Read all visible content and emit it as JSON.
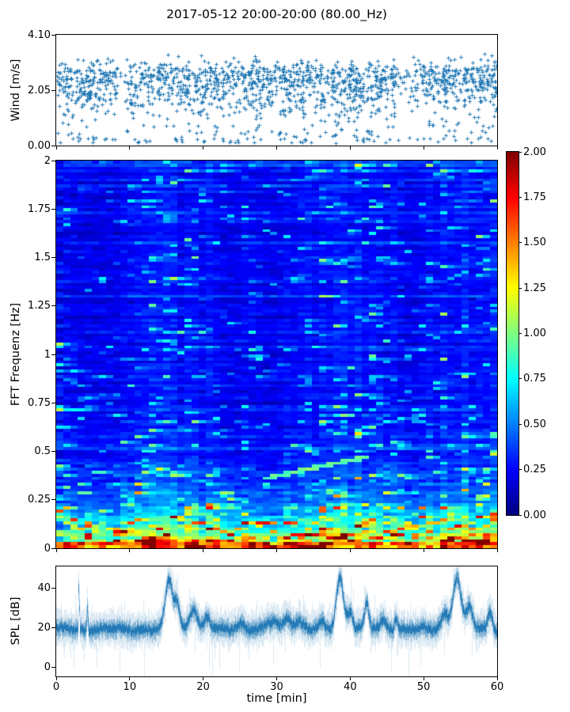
{
  "figure": {
    "title": "2017-05-12 20:00-20:00 (80.00_Hz)",
    "background": "#ffffff",
    "accent_color": "#1f77b4"
  },
  "chart_data": [
    {
      "type": "scatter",
      "name": "wind-speed",
      "ylabel": "Wind [m/s]",
      "yticks": [
        0.0,
        2.05,
        4.1
      ],
      "ytick_labels": [
        "0.00",
        "2.05",
        "4.10"
      ],
      "ylim": [
        0,
        4.1
      ],
      "xlim": [
        0,
        60
      ],
      "xticks": [
        0,
        10,
        20,
        30,
        40,
        50,
        60
      ],
      "marker": "+",
      "marker_color": "#1f77b4",
      "n_points": 1650,
      "y_cluster_mean": 2.55,
      "y_cluster_sd": 0.55,
      "y_secondary_mean": 1.7,
      "y_secondary_sd": 0.55,
      "low_tail_fraction": 0.1,
      "sparse_windows_min": [
        [
          8.2,
          9.4
        ],
        [
          46.3,
          48.6
        ]
      ],
      "description": "Dense cloud of wind-speed plus-markers between ~1 and ~3.6 m/s with sparse low-speed outliers down to ~0.1 m/s"
    },
    {
      "type": "heatmap",
      "name": "fft-spectrogram",
      "ylabel": "FFT Frequenz [Hz]",
      "yticks": [
        0,
        0.25,
        0.5,
        0.75,
        1,
        1.25,
        1.5,
        1.75,
        2
      ],
      "ytick_labels": [
        "0",
        "0.25",
        "0.5",
        "0.75",
        "1",
        "1.25",
        "1.5",
        "1.75",
        "2"
      ],
      "ylim": [
        0,
        2
      ],
      "xlim": [
        0,
        60
      ],
      "xticks": [
        0,
        10,
        20,
        30,
        40,
        50,
        60
      ],
      "colormap": "jet",
      "zlim": [
        0,
        2
      ],
      "colorbar_ticks": [
        0,
        0.25,
        0.5,
        0.75,
        1,
        1.25,
        1.5,
        1.75,
        2
      ],
      "colorbar_tick_labels": [
        "0.00",
        "0.25",
        "0.50",
        "0.75",
        "1.00",
        "1.25",
        "1.50",
        "1.75",
        "2.00"
      ],
      "n_cols": 62,
      "n_rows": 130,
      "base_level": 0.2,
      "lowfreq_scale": 0.85,
      "lowfreq_decay_hz": 0.16,
      "bottom_band_min": 1.1,
      "events": [
        {
          "t": 0.6,
          "s": 0.8,
          "w": 0.7
        },
        {
          "t": 9.5,
          "s": 0.4,
          "w": 0.8
        },
        {
          "t": 11.5,
          "s": 0.6,
          "w": 0.9
        },
        {
          "t": 13.5,
          "s": 0.9,
          "w": 0.9
        },
        {
          "t": 15.5,
          "s": 1.0,
          "w": 0.9
        },
        {
          "t": 18.3,
          "s": 0.85,
          "w": 0.8
        },
        {
          "t": 21.0,
          "s": 0.7,
          "w": 0.7
        },
        {
          "t": 26.0,
          "s": 0.25,
          "w": 0.8
        },
        {
          "t": 31.5,
          "s": 0.45,
          "w": 0.9
        },
        {
          "t": 34.0,
          "s": 0.7,
          "w": 0.9
        },
        {
          "t": 36.5,
          "s": 0.7,
          "w": 0.8
        },
        {
          "t": 38.7,
          "s": 1.0,
          "w": 0.9
        },
        {
          "t": 41.0,
          "s": 0.85,
          "w": 0.8
        },
        {
          "t": 43.5,
          "s": 0.8,
          "w": 0.8
        },
        {
          "t": 46.0,
          "s": 0.6,
          "w": 0.7
        },
        {
          "t": 50.5,
          "s": 0.6,
          "w": 0.8
        },
        {
          "t": 53.0,
          "s": 0.8,
          "w": 0.8
        },
        {
          "t": 55.5,
          "s": 0.9,
          "w": 0.9
        },
        {
          "t": 58.0,
          "s": 0.75,
          "w": 0.7
        },
        {
          "t": 59.7,
          "s": 0.9,
          "w": 0.6
        }
      ],
      "diagonal_feature": {
        "t_start": 28,
        "t_end": 43,
        "f_start": 0.35,
        "f_end": 0.47,
        "value": 0.85
      },
      "description": "Mostly dark/medium blue field (values 0.1-0.5) with horizontal noisy striping, cyan-green streaks, strong yellow-orange-red activity below ~0.3 Hz concentrated in vertical event bands around 10-22, 32-46 and 50-60 min; bottom rows saturate to dark red"
    },
    {
      "type": "line",
      "name": "spl",
      "ylabel": "SPL [dB]",
      "xlabel": "time [min]",
      "yticks": [
        0,
        20,
        40
      ],
      "ytick_labels": [
        "0",
        "20",
        "40"
      ],
      "xticks": [
        0,
        10,
        20,
        30,
        40,
        50,
        60
      ],
      "xtick_labels": [
        "0",
        "10",
        "20",
        "30",
        "40",
        "50",
        "60"
      ],
      "ylim": [
        -4.8,
        50.8
      ],
      "xlim": [
        0,
        60
      ],
      "line_color": "#1f77b4",
      "baseline_db": 19,
      "noise_halfwidth_db": 5,
      "peaks": [
        {
          "t": 3.05,
          "h": 24,
          "w": 0.08
        },
        {
          "t": 4.2,
          "h": 12,
          "w": 0.1
        },
        {
          "t": 15.3,
          "h": 25,
          "w": 0.7
        },
        {
          "t": 16.4,
          "h": 12,
          "w": 0.5
        },
        {
          "t": 18.6,
          "h": 11,
          "w": 0.7
        },
        {
          "t": 20.5,
          "h": 6,
          "w": 0.5
        },
        {
          "t": 25.0,
          "h": 3,
          "w": 0.8
        },
        {
          "t": 29.5,
          "h": 4,
          "w": 1.0
        },
        {
          "t": 31.5,
          "h": 6,
          "w": 0.7
        },
        {
          "t": 33.0,
          "h": 4,
          "w": 0.7
        },
        {
          "t": 36.0,
          "h": 3,
          "w": 0.5
        },
        {
          "t": 38.55,
          "h": 26,
          "w": 0.7
        },
        {
          "t": 40.0,
          "h": 9,
          "w": 0.5
        },
        {
          "t": 42.2,
          "h": 13,
          "w": 0.4
        },
        {
          "t": 44.5,
          "h": 4,
          "w": 0.6
        },
        {
          "t": 46.2,
          "h": 6,
          "w": 0.35
        },
        {
          "t": 52.8,
          "h": 8,
          "w": 0.6
        },
        {
          "t": 54.45,
          "h": 26,
          "w": 0.8
        },
        {
          "t": 56.2,
          "h": 11,
          "w": 0.6
        },
        {
          "t": 59.0,
          "h": 9,
          "w": 0.45
        }
      ],
      "description": "Noisy SPL trace around 19 dB (band ~13-25 dB) with broad peaks to ~45-48 dB near 15.3, 38.5 and 54.5 min, narrow spike at ~3 min, smaller bumps at 42 and 56-59 min"
    }
  ]
}
